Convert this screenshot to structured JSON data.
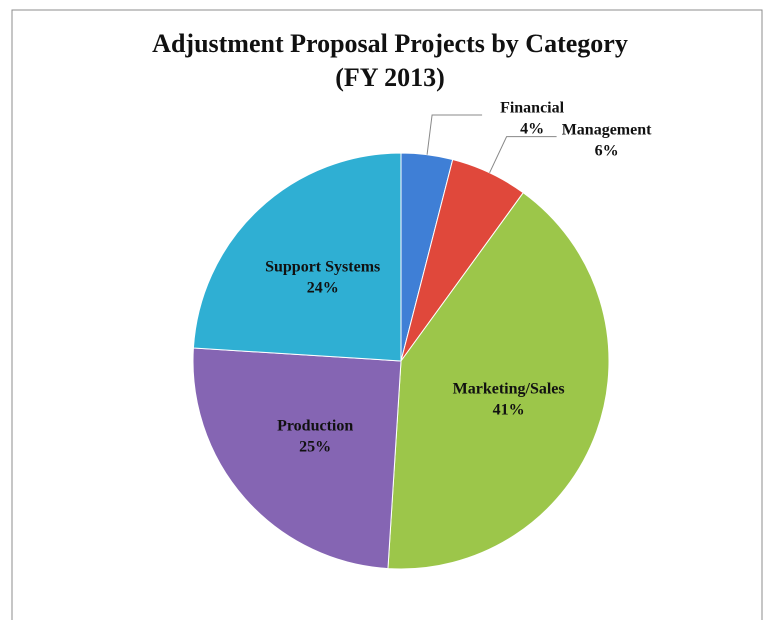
{
  "chart_data": {
    "type": "pie",
    "title": "Adjustment Proposal Projects by Category",
    "subtitle": "(FY 2013)",
    "categories": [
      "Financial",
      "Management",
      "Marketing/Sales",
      "Production",
      "Support Systems"
    ],
    "values": [
      4,
      6,
      41,
      25,
      24
    ],
    "value_labels": [
      "4%",
      "6%",
      "41%",
      "25%",
      "24%"
    ],
    "colors": [
      "#3f7fd6",
      "#e0483b",
      "#9cc64a",
      "#8565b3",
      "#2fafd3"
    ]
  }
}
